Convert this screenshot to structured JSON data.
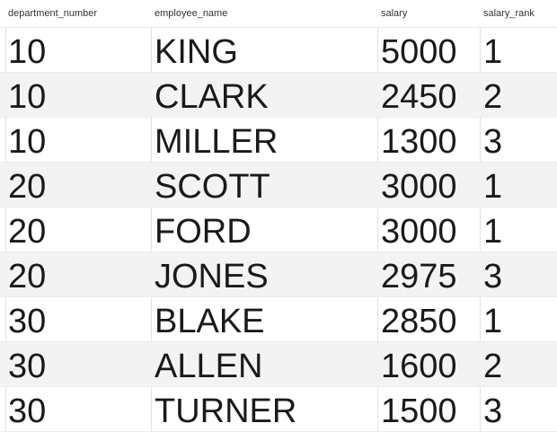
{
  "columns": [
    "department_number",
    "employee_name",
    "salary",
    "salary_rank"
  ],
  "rows": [
    [
      "10",
      "KING",
      "5000",
      "1"
    ],
    [
      "10",
      "CLARK",
      "2450",
      "2"
    ],
    [
      "10",
      "MILLER",
      "1300",
      "3"
    ],
    [
      "20",
      "SCOTT",
      "3000",
      "1"
    ],
    [
      "20",
      "FORD",
      "3000",
      "1"
    ],
    [
      "20",
      "JONES",
      "2975",
      "3"
    ],
    [
      "30",
      "BLAKE",
      "2850",
      "1"
    ],
    [
      "30",
      "ALLEN",
      "1600",
      "2"
    ],
    [
      "30",
      "TURNER",
      "1500",
      "3"
    ]
  ]
}
